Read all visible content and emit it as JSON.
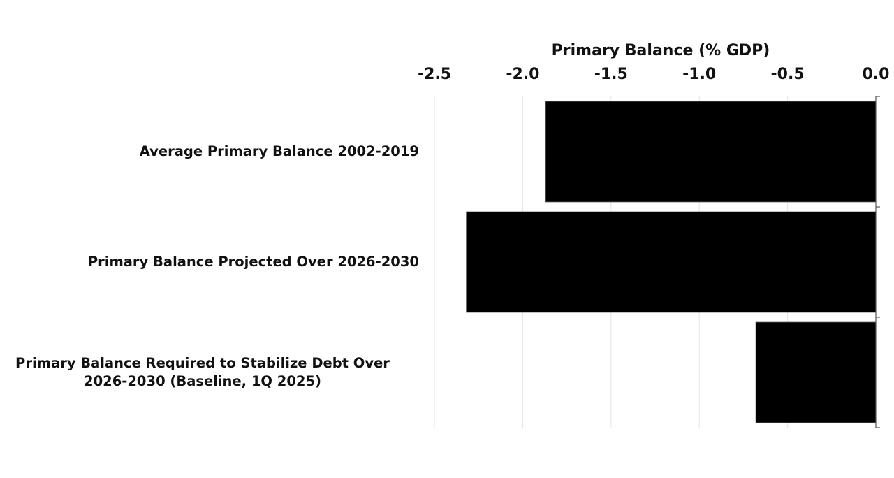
{
  "chart_data": {
    "type": "bar",
    "orientation": "horizontal",
    "title": "",
    "xlabel": "Primary Balance (% GDP)",
    "ylabel": "",
    "xlim": [
      -2.5,
      0.0
    ],
    "x_ticks": [
      "-2.5",
      "-2.0",
      "-1.5",
      "-1.0",
      "-0.5",
      "0.0"
    ],
    "x_tick_values": [
      -2.5,
      -2.0,
      -1.5,
      -1.0,
      -0.5,
      0.0
    ],
    "x_axis_position": "top",
    "grid": true,
    "categories": [
      "Average Primary Balance 2002-2019",
      "Primary Balance Projected Over 2026-2030",
      "Primary Balance Required to Stabilize Debt Over 2026-2030 (Baseline, 1Q 2025)"
    ],
    "category_lines": [
      [
        "Average Primary Balance 2002-2019"
      ],
      [
        "Primary Balance Projected Over 2026-2030"
      ],
      [
        "Primary Balance Required to Stabilize Debt Over",
        "2026-2030 (Baseline, 1Q 2025)"
      ]
    ],
    "values": [
      -1.87,
      -2.32,
      -0.68
    ],
    "bar_color": "#000000",
    "grid_color": "#e3e3e3"
  }
}
